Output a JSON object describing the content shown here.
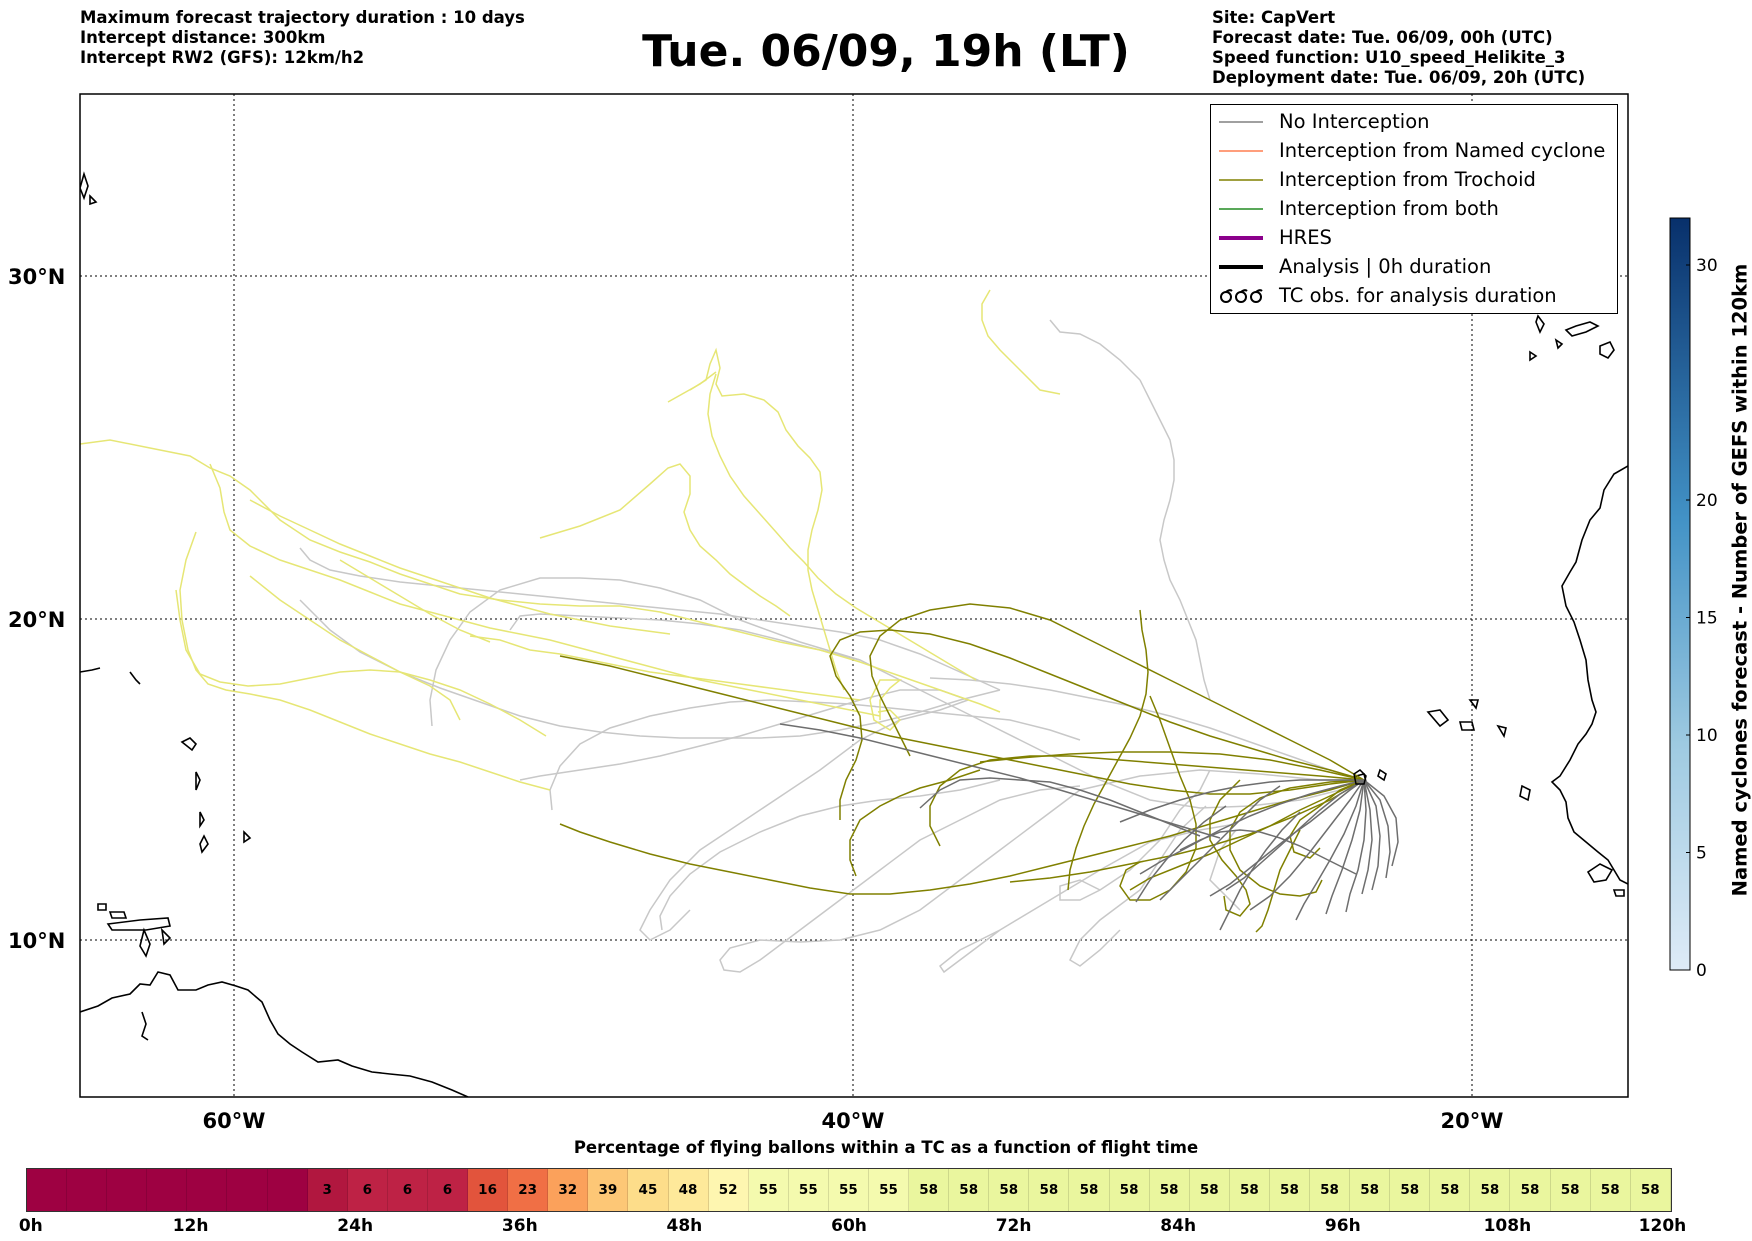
{
  "header_left": [
    "Maximum forecast trajectory duration : 10 days",
    "Intercept distance: 300km",
    "Intercept RW2 (GFS):  12km/h2"
  ],
  "title": "Tue. 06/09, 19h (LT)",
  "header_right": [
    "Site: CapVert",
    "Forecast date: Tue. 06/09, 00h (UTC)",
    "Speed function: U10_speed_Helikite_3",
    "Deployment date: Tue. 06/09, 20h (UTC)"
  ],
  "map": {
    "lat_labels": [
      "30°N",
      "20°N",
      "10°N"
    ],
    "lon_labels": [
      "60°W",
      "40°W",
      "20°W"
    ],
    "launch_site": "CapVert"
  },
  "legend": {
    "items": [
      {
        "label": "No Interception",
        "color": "#808080",
        "style": "thin"
      },
      {
        "label": "Interception from Named cyclone",
        "color": "#ff7f50",
        "style": "thin"
      },
      {
        "label": "Interception from Trochoid",
        "color": "#808000",
        "style": "thin"
      },
      {
        "label": "Interception from both",
        "color": "#228b22",
        "style": "thin"
      },
      {
        "label": "HRES",
        "color": "#8b008b",
        "style": "thick"
      },
      {
        "label": "Analysis | 0h duration",
        "color": "#000000",
        "style": "thick"
      },
      {
        "label": "TC obs. for analysis duration",
        "color": "#000000",
        "style": "tc-symbol"
      }
    ]
  },
  "colorbar": {
    "label": "Named cyclones forecast - Number of GEFS within 120km",
    "ticks": [
      "0",
      "5",
      "10",
      "15",
      "20",
      "30"
    ],
    "tick_values": [
      0,
      5,
      10,
      15,
      20,
      30
    ],
    "max_value": 32,
    "colors": [
      "#deebf7",
      "#08306b"
    ]
  },
  "bottom_title": "Percentage of flying ballons within a TC as a function of flight time",
  "flight_pct": {
    "values": [
      "",
      "",
      "",
      "",
      "",
      "",
      "",
      "3",
      "6",
      "6",
      "6",
      "16",
      "23",
      "32",
      "39",
      "45",
      "48",
      "52",
      "55",
      "55",
      "55",
      "55",
      "58",
      "58",
      "58",
      "58",
      "58",
      "58",
      "58",
      "58",
      "58",
      "58",
      "58",
      "58",
      "58",
      "58",
      "58",
      "58",
      "58",
      "58",
      "58"
    ],
    "cell_colors": [
      "#9e0142",
      "#9e0142",
      "#9e0142",
      "#9e0142",
      "#9e0142",
      "#9e0142",
      "#9e0142",
      "#b1173f",
      "#be2245",
      "#be2245",
      "#be2245",
      "#e2543c",
      "#f06f45",
      "#fba15b",
      "#fdc776",
      "#fddd8a",
      "#fee99a",
      "#fef6b0",
      "#f4faae",
      "#f4faae",
      "#f4faae",
      "#f4faae",
      "#eaf69e",
      "#eaf69e",
      "#eaf69e",
      "#eaf69e",
      "#eaf69e",
      "#eaf69e",
      "#eaf69e",
      "#eaf69e",
      "#eaf69e",
      "#eaf69e",
      "#eaf69e",
      "#eaf69e",
      "#eaf69e",
      "#eaf69e",
      "#eaf69e",
      "#eaf69e",
      "#eaf69e",
      "#eaf69e",
      "#eaf69e"
    ],
    "time_labels": [
      "0h",
      "12h",
      "24h",
      "36h",
      "48h",
      "60h",
      "72h",
      "84h",
      "96h",
      "108h",
      "120h"
    ]
  }
}
